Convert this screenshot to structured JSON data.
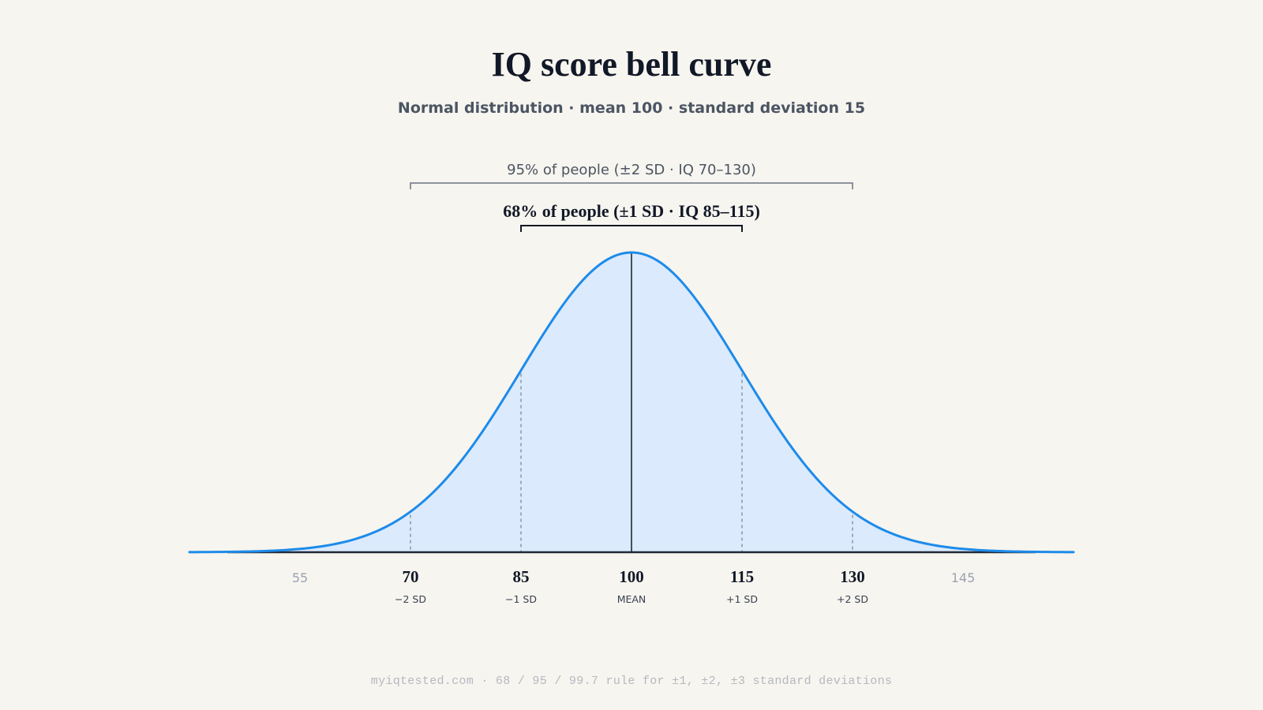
{
  "header": {
    "title": "IQ score bell curve",
    "subtitle": "Normal distribution · mean 100 · standard deviation 15"
  },
  "footer": {
    "text": "myiqtested.com · 68 / 95 / 99.7 rule for ±1, ±2, ±3 standard deviations"
  },
  "chart_data": {
    "type": "area",
    "distribution": "normal",
    "mean": 100,
    "sd": 15,
    "xlim": [
      40,
      160
    ],
    "grid": false,
    "legend": "none",
    "colors": {
      "curve": "#1d8bea",
      "fill": "#dbeafd",
      "axis": "#1f2937",
      "mean_line": "#1f2937",
      "sd_lines": "#8b94a3",
      "bracket_outer": "#6b7280",
      "bracket_inner": "#111827"
    },
    "ticks": [
      {
        "value": 55,
        "label": "55",
        "sublabel": "",
        "style": "muted"
      },
      {
        "value": 70,
        "label": "70",
        "sublabel": "−2 SD",
        "style": "strong"
      },
      {
        "value": 85,
        "label": "85",
        "sublabel": "−1 SD",
        "style": "strong"
      },
      {
        "value": 100,
        "label": "100",
        "sublabel": "MEAN",
        "style": "strong"
      },
      {
        "value": 115,
        "label": "115",
        "sublabel": "+1 SD",
        "style": "strong"
      },
      {
        "value": 130,
        "label": "130",
        "sublabel": "+2 SD",
        "style": "strong"
      },
      {
        "value": 145,
        "label": "145",
        "sublabel": "",
        "style": "muted"
      }
    ],
    "sd_markers": [
      70,
      85,
      115,
      130
    ],
    "mean_marker": 100,
    "brackets": [
      {
        "from": 70,
        "to": 130,
        "label": "95% of people (±2 SD · IQ 70–130)",
        "emphasis": false
      },
      {
        "from": 85,
        "to": 115,
        "label": "68% of people (±1 SD · IQ 85–115)",
        "emphasis": true
      }
    ]
  }
}
